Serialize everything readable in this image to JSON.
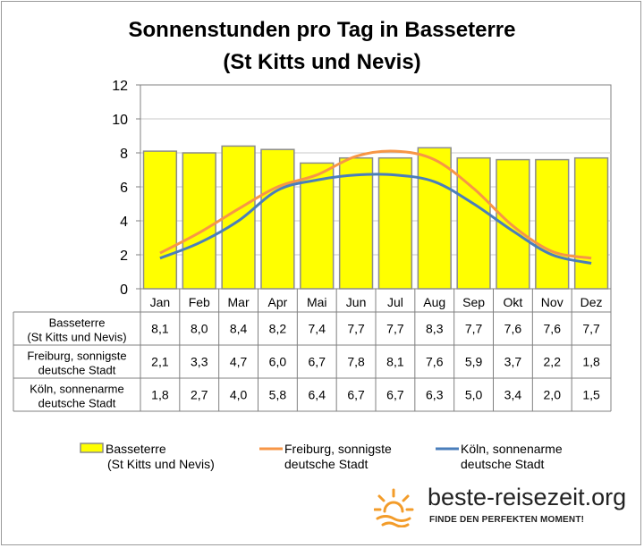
{
  "chart_data": {
    "type": "bar",
    "title_line1": "Sonnenstunden pro Tag in Basseterre",
    "title_line2": "(St Kitts und Nevis)",
    "categories": [
      "Jan",
      "Feb",
      "Mar",
      "Apr",
      "Mai",
      "Jun",
      "Jul",
      "Aug",
      "Sep",
      "Okt",
      "Nov",
      "Dez"
    ],
    "ylim": [
      0,
      12
    ],
    "yticks": [
      "0",
      "2",
      "4",
      "6",
      "8",
      "10",
      "12"
    ],
    "grid": true,
    "legend_position": "bottom",
    "series": [
      {
        "name_lines": [
          "Basseterre",
          "(St Kitts und Nevis)"
        ],
        "type": "bar",
        "color": "#ffff00",
        "values": [
          8.1,
          8.0,
          8.4,
          8.2,
          7.4,
          7.7,
          7.7,
          8.3,
          7.7,
          7.6,
          7.6,
          7.7
        ],
        "labels": [
          "8,1",
          "8,0",
          "8,4",
          "8,2",
          "7,4",
          "7,7",
          "7,7",
          "8,3",
          "7,7",
          "7,6",
          "7,6",
          "7,7"
        ]
      },
      {
        "name_lines": [
          "Freiburg, sonnigste",
          "deutsche Stadt"
        ],
        "type": "line",
        "color": "#f79646",
        "values": [
          2.1,
          3.3,
          4.7,
          6.0,
          6.7,
          7.8,
          8.1,
          7.6,
          5.9,
          3.7,
          2.2,
          1.8
        ],
        "labels": [
          "2,1",
          "3,3",
          "4,7",
          "6,0",
          "6,7",
          "7,8",
          "8,1",
          "7,6",
          "5,9",
          "3,7",
          "2,2",
          "1,8"
        ]
      },
      {
        "name_lines": [
          "Köln, sonnenarme",
          "deutsche Stadt"
        ],
        "type": "line",
        "color": "#4a7ebb",
        "values": [
          1.8,
          2.7,
          4.0,
          5.8,
          6.4,
          6.7,
          6.7,
          6.3,
          5.0,
          3.4,
          2.0,
          1.5
        ],
        "labels": [
          "1,8",
          "2,7",
          "4,0",
          "5,8",
          "6,4",
          "6,7",
          "6,7",
          "6,3",
          "5,0",
          "3,4",
          "2,0",
          "1,5"
        ]
      }
    ]
  },
  "branding": {
    "site": "beste-reisezeit.org",
    "tagline": "FINDE DEN PERFEKTEN MOMENT!",
    "sun_color": "#f39c2a"
  }
}
